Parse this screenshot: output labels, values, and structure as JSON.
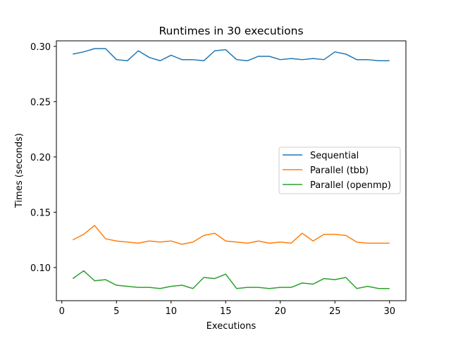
{
  "chart_data": {
    "type": "line",
    "title": "Runtimes in 30 executions",
    "xlabel": "Executions",
    "ylabel": "Times (seconds)",
    "xlim": [
      -0.5,
      31.5
    ],
    "ylim": [
      0.07,
      0.305
    ],
    "xticks": [
      0,
      5,
      10,
      15,
      20,
      25,
      30
    ],
    "yticks": [
      0.1,
      0.15,
      0.2,
      0.25,
      0.3
    ],
    "xtick_labels": [
      "0",
      "5",
      "10",
      "15",
      "20",
      "25",
      "30"
    ],
    "ytick_labels": [
      "0.10",
      "0.15",
      "0.20",
      "0.25",
      "0.30"
    ],
    "grid": false,
    "legend_position": "center-right",
    "x": [
      1,
      2,
      3,
      4,
      5,
      6,
      7,
      8,
      9,
      10,
      11,
      12,
      13,
      14,
      15,
      16,
      17,
      18,
      19,
      20,
      21,
      22,
      23,
      24,
      25,
      26,
      27,
      28,
      29,
      30
    ],
    "series": [
      {
        "name": "Sequential",
        "color": "#1f77b4",
        "values": [
          0.293,
          0.295,
          0.298,
          0.298,
          0.288,
          0.287,
          0.296,
          0.29,
          0.287,
          0.292,
          0.288,
          0.288,
          0.287,
          0.296,
          0.297,
          0.288,
          0.287,
          0.291,
          0.291,
          0.288,
          0.289,
          0.288,
          0.289,
          0.288,
          0.295,
          0.293,
          0.288,
          0.288,
          0.287,
          0.287
        ]
      },
      {
        "name": "Parallel (tbb)",
        "color": "#ff7f0e",
        "values": [
          0.125,
          0.13,
          0.138,
          0.126,
          0.124,
          0.123,
          0.122,
          0.124,
          0.123,
          0.124,
          0.121,
          0.123,
          0.129,
          0.131,
          0.124,
          0.123,
          0.122,
          0.124,
          0.122,
          0.123,
          0.122,
          0.131,
          0.124,
          0.13,
          0.13,
          0.129,
          0.123,
          0.122,
          0.122,
          0.122
        ]
      },
      {
        "name": "Parallel (openmp)",
        "color": "#2ca02c",
        "values": [
          0.09,
          0.097,
          0.088,
          0.089,
          0.084,
          0.083,
          0.082,
          0.082,
          0.081,
          0.083,
          0.084,
          0.081,
          0.091,
          0.09,
          0.094,
          0.081,
          0.082,
          0.082,
          0.081,
          0.082,
          0.082,
          0.086,
          0.085,
          0.09,
          0.089,
          0.091,
          0.081,
          0.083,
          0.081,
          0.081
        ]
      }
    ]
  }
}
